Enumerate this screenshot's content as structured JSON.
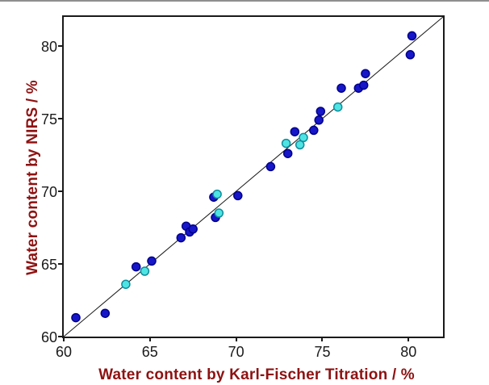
{
  "figure": {
    "background": "#ffffff",
    "frame_color": "#1a1a1a",
    "axis_label_color": "#8E1212",
    "tick_label_color": "#1a1a1a"
  },
  "chart_data": {
    "type": "scatter",
    "title": "",
    "xlabel": "Water content by Karl-Fischer Titration / %",
    "ylabel": "Water content by NIRS / %",
    "xlim": [
      60,
      82
    ],
    "ylim": [
      60,
      82
    ],
    "xticks": [
      60,
      65,
      70,
      75,
      80
    ],
    "yticks": [
      60,
      65,
      70,
      75,
      80
    ],
    "grid": false,
    "legend": false,
    "identity_line": {
      "from": [
        60,
        60
      ],
      "to": [
        82,
        82
      ],
      "color": "#1a1a1a",
      "width": 1
    },
    "series": [
      {
        "name": "dark-blue-points",
        "marker": "circle",
        "fill": "#1717C9",
        "stroke": "#00008B",
        "points": [
          [
            60.7,
            61.3
          ],
          [
            62.4,
            61.6
          ],
          [
            64.2,
            64.8
          ],
          [
            65.1,
            65.2
          ],
          [
            66.8,
            66.8
          ],
          [
            67.1,
            67.6
          ],
          [
            67.3,
            67.2
          ],
          [
            67.5,
            67.4
          ],
          [
            68.8,
            68.2
          ],
          [
            68.7,
            69.6
          ],
          [
            70.1,
            69.7
          ],
          [
            72.0,
            71.7
          ],
          [
            73.0,
            72.6
          ],
          [
            73.4,
            74.1
          ],
          [
            74.5,
            74.2
          ],
          [
            74.8,
            74.9
          ],
          [
            74.9,
            75.5
          ],
          [
            76.1,
            77.1
          ],
          [
            77.1,
            77.1
          ],
          [
            77.4,
            77.3
          ],
          [
            77.5,
            78.1
          ],
          [
            80.1,
            79.4
          ],
          [
            80.2,
            80.7
          ]
        ]
      },
      {
        "name": "cyan-points",
        "marker": "circle",
        "fill": "#4FE4E4",
        "stroke": "#0E8C9C",
        "points": [
          [
            63.6,
            63.6
          ],
          [
            64.7,
            64.5
          ],
          [
            69.0,
            68.5
          ],
          [
            68.9,
            69.8
          ],
          [
            72.9,
            73.3
          ],
          [
            73.7,
            73.2
          ],
          [
            73.9,
            73.7
          ],
          [
            75.9,
            75.8
          ]
        ]
      }
    ]
  }
}
